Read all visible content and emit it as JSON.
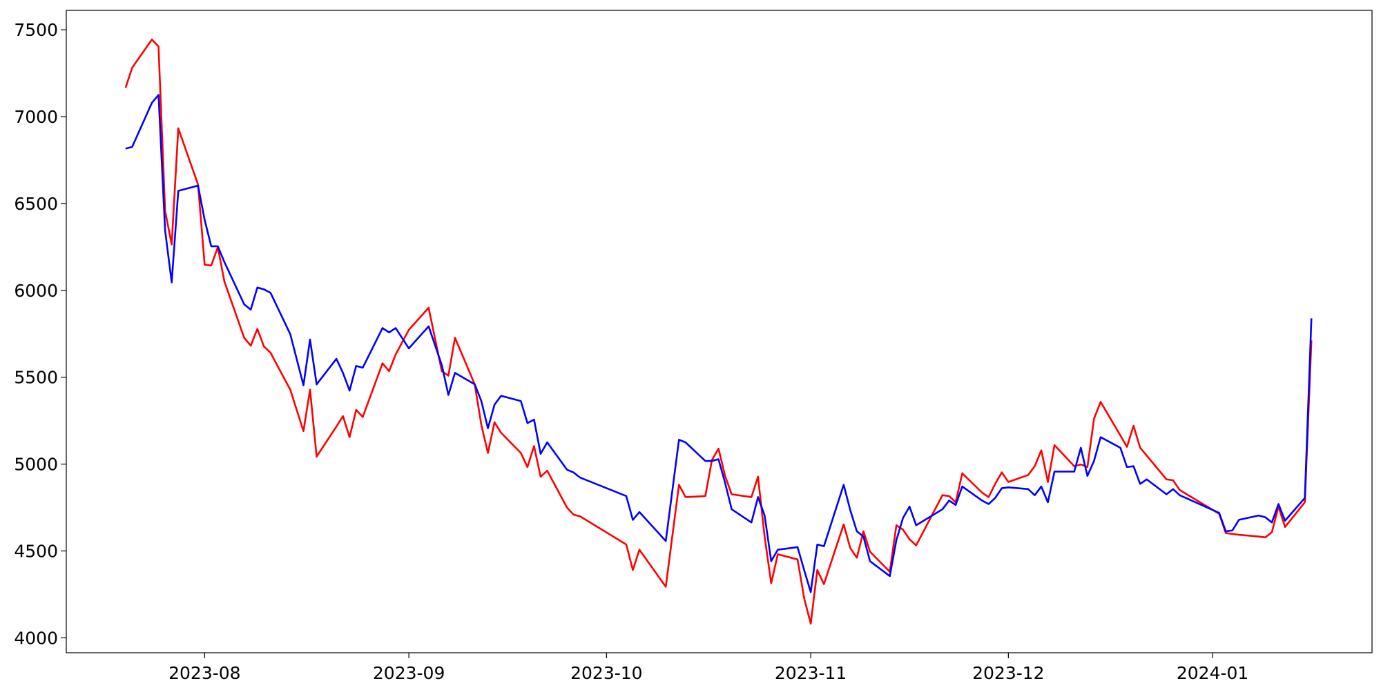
{
  "chart_data": {
    "type": "line",
    "x": [
      19558,
      19559,
      19562,
      19563,
      19564,
      19565,
      19566,
      19569,
      19570,
      19571,
      19572,
      19573,
      19576,
      19577,
      19578,
      19579,
      19580,
      19583,
      19585,
      19586,
      19587,
      19590,
      19591,
      19592,
      19593,
      19594,
      19597,
      19598,
      19599,
      19601,
      19604,
      19606,
      19607,
      19608,
      19611,
      19612,
      19613,
      19614,
      19615,
      19618,
      19619,
      19620,
      19621,
      19622,
      19625,
      19626,
      19627,
      19634,
      19635,
      19636,
      19640,
      19642,
      19643,
      19646,
      19647,
      19648,
      19649,
      19650,
      19653,
      19654,
      19655,
      19656,
      19657,
      19660,
      19661,
      19662,
      19663,
      19664,
      19667,
      19668,
      19669,
      19670,
      19671,
      19674,
      19675,
      19676,
      19677,
      19678,
      19682,
      19683,
      19684,
      19685,
      19688,
      19689,
      19690,
      19691,
      19692,
      19695,
      19696,
      19697,
      19698,
      19699,
      19702,
      19703,
      19704,
      19705,
      19706,
      19709,
      19710,
      19711,
      19712,
      19713,
      19716,
      19717,
      19718,
      19724,
      19725,
      19726,
      19727,
      19730,
      19731,
      19732,
      19733,
      19734,
      19737,
      19738
    ],
    "series": [
      {
        "color": "#ff0000",
        "values": [
          7166,
          7282,
          7444,
          7404,
          6457,
          6264,
          6933,
          6609,
          6148,
          6143,
          6249,
          6051,
          5727,
          5682,
          5778,
          5677,
          5641,
          5428,
          5190,
          5428,
          5043,
          5216,
          5276,
          5155,
          5312,
          5271,
          5580,
          5535,
          5631,
          5773,
          5900,
          5535,
          5509,
          5727,
          5459,
          5226,
          5064,
          5241,
          5180,
          5064,
          4983,
          5104,
          4927,
          4962,
          4750,
          4709,
          4699,
          4537,
          4390,
          4507,
          4294,
          4881,
          4810,
          4816,
          5023,
          5089,
          4932,
          4826,
          4810,
          4927,
          4583,
          4314,
          4481,
          4451,
          4228,
          4081,
          4390,
          4309,
          4653,
          4517,
          4461,
          4613,
          4496,
          4380,
          4648,
          4623,
          4567,
          4532,
          4821,
          4816,
          4780,
          4947,
          4836,
          4810,
          4886,
          4952,
          4897,
          4937,
          4988,
          5079,
          4897,
          5109,
          4988,
          4998,
          4983,
          5261,
          5358,
          5165,
          5099,
          5221,
          5094,
          5049,
          4912,
          4907,
          4851,
          4714,
          4603,
          4598,
          4593,
          4583,
          4578,
          4608,
          4755,
          4638,
          4780,
          5712
        ]
      },
      {
        "color": "#0000ff",
        "values": [
          6816,
          6826,
          7080,
          7125,
          6345,
          6046,
          6573,
          6603,
          6406,
          6254,
          6254,
          6163,
          5920,
          5889,
          6016,
          6006,
          5986,
          5748,
          5454,
          5717,
          5459,
          5606,
          5525,
          5423,
          5565,
          5555,
          5783,
          5758,
          5783,
          5666,
          5793,
          5570,
          5398,
          5525,
          5459,
          5363,
          5206,
          5342,
          5393,
          5363,
          5236,
          5256,
          5059,
          5125,
          4968,
          4952,
          4922,
          4816,
          4679,
          4724,
          4557,
          5140,
          5125,
          5018,
          5018,
          5028,
          4892,
          4740,
          4664,
          4810,
          4704,
          4441,
          4507,
          4522,
          4390,
          4263,
          4537,
          4527,
          4881,
          4735,
          4613,
          4583,
          4441,
          4355,
          4562,
          4689,
          4755,
          4648,
          4740,
          4790,
          4765,
          4871,
          4790,
          4770,
          4805,
          4861,
          4866,
          4856,
          4821,
          4871,
          4780,
          4957,
          4957,
          5094,
          4932,
          5018,
          5155,
          5094,
          4983,
          4988,
          4886,
          4912,
          4826,
          4856,
          4821,
          4719,
          4613,
          4618,
          4679,
          4704,
          4694,
          4664,
          4770,
          4674,
          4805,
          5839
        ]
      }
    ],
    "xlim": [
      19549,
      19747.2
    ],
    "xticks": [
      {
        "value": 19570,
        "label": "2023-08"
      },
      {
        "value": 19601,
        "label": "2023-09"
      },
      {
        "value": 19631,
        "label": "2023-10"
      },
      {
        "value": 19662,
        "label": "2023-11"
      },
      {
        "value": 19692,
        "label": "2023-12"
      },
      {
        "value": 19723,
        "label": "2024-01"
      }
    ],
    "ylim": [
      3914,
      7612
    ],
    "yticks": [
      4000,
      4500,
      5000,
      5500,
      6000,
      6500,
      7000,
      7500
    ]
  }
}
